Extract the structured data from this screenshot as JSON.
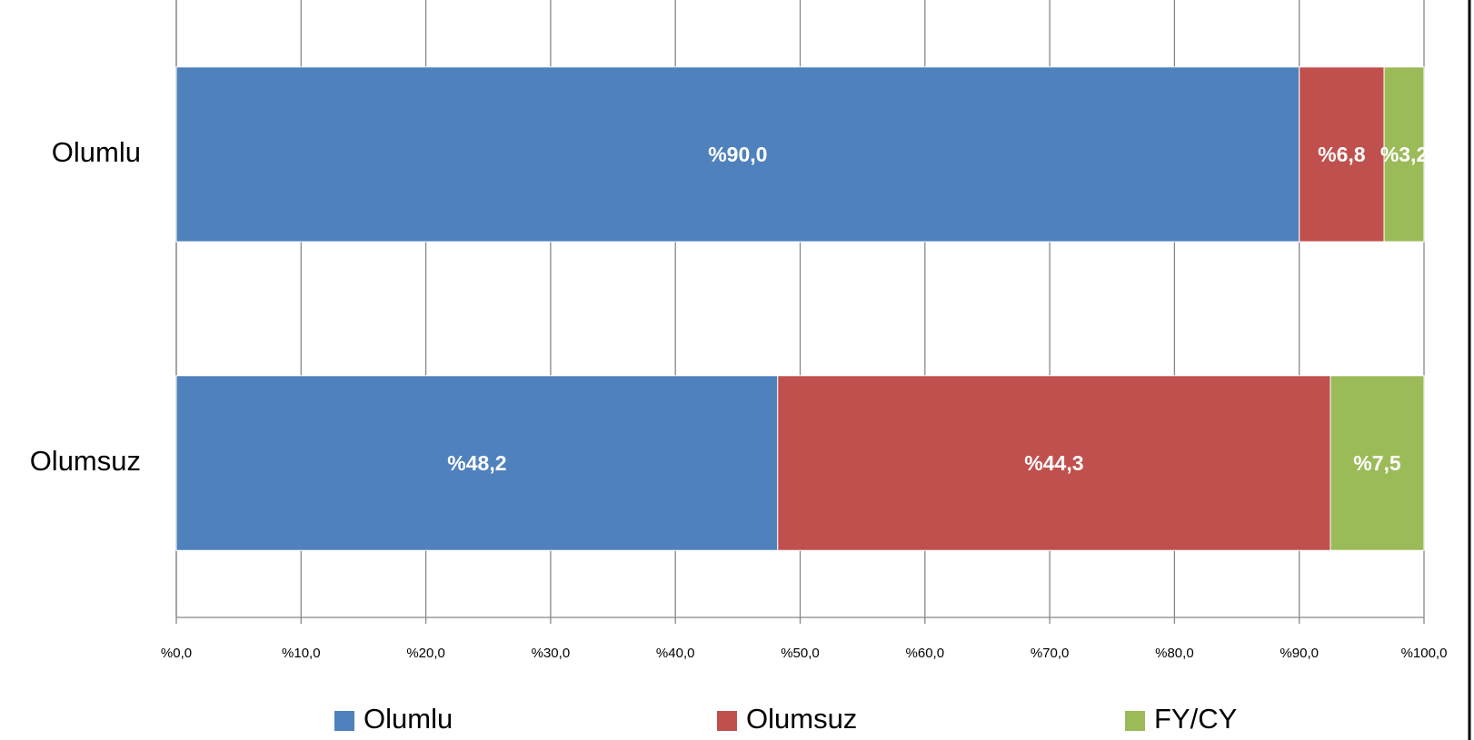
{
  "chart_data": {
    "type": "stacked_barh",
    "categories": [
      "Olumlu",
      "Olumsuz"
    ],
    "series": [
      {
        "name": "Olumlu",
        "color": "#4f81bd",
        "values": [
          90.0,
          48.2
        ],
        "value_labels": [
          "%90,0",
          "%48,2"
        ]
      },
      {
        "name": "Olumsuz",
        "color": "#c0504d",
        "values": [
          6.8,
          44.3
        ],
        "value_labels": [
          "%6,8",
          "%44,3"
        ]
      },
      {
        "name": "FY/CY",
        "color": "#9bbb59",
        "values": [
          3.2,
          7.5
        ],
        "value_labels": [
          "%3,2",
          "%7,5"
        ]
      }
    ],
    "xlim": [
      0,
      100
    ],
    "xticks": [
      {
        "value": 0,
        "label": "%0,0"
      },
      {
        "value": 10,
        "label": "%10,0"
      },
      {
        "value": 20,
        "label": "%20,0"
      },
      {
        "value": 30,
        "label": "%30,0"
      },
      {
        "value": 40,
        "label": "%40,0"
      },
      {
        "value": 50,
        "label": "%50,0"
      },
      {
        "value": 60,
        "label": "%60,0"
      },
      {
        "value": 70,
        "label": "%70,0"
      },
      {
        "value": 80,
        "label": "%80,0"
      },
      {
        "value": 90,
        "label": "%90,0"
      },
      {
        "value": 100,
        "label": "%100,0"
      }
    ],
    "grid": true,
    "legend": "bottom"
  }
}
